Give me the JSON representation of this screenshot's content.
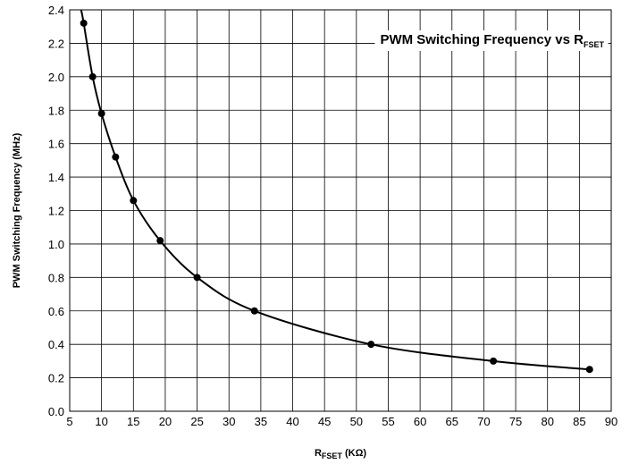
{
  "chart_data": {
    "type": "line",
    "title": "PWM Switching Frequency vs R",
    "title_subscript": "FSET",
    "xlabel": "R",
    "xlabel_subscript": "FSET",
    "xlabel_suffix": " (KΩ)",
    "ylabel": "PWM Switching Frequency  (MHz)",
    "xlim": [
      5,
      90
    ],
    "ylim": [
      0.0,
      2.4
    ],
    "x_ticks": [
      "5",
      "10",
      "15",
      "20",
      "25",
      "30",
      "35",
      "40",
      "45",
      "50",
      "55",
      "60",
      "65",
      "70",
      "75",
      "80",
      "85",
      "90"
    ],
    "y_ticks": [
      "0.0",
      "0.2",
      "0.4",
      "0.6",
      "0.8",
      "1.0",
      "1.2",
      "1.4",
      "1.6",
      "1.8",
      "2.0",
      "2.2",
      "2.4"
    ],
    "grid": true,
    "marker": "circle",
    "line_color": "#000000",
    "series": [
      {
        "x": [
          7.2,
          8.6,
          10.0,
          12.2,
          15.0,
          19.2,
          25.0,
          34.0,
          52.3,
          71.5,
          86.6
        ],
        "y": [
          2.32,
          2.0,
          1.78,
          1.52,
          1.26,
          1.02,
          0.8,
          0.6,
          0.4,
          0.3,
          0.25
        ]
      }
    ]
  }
}
